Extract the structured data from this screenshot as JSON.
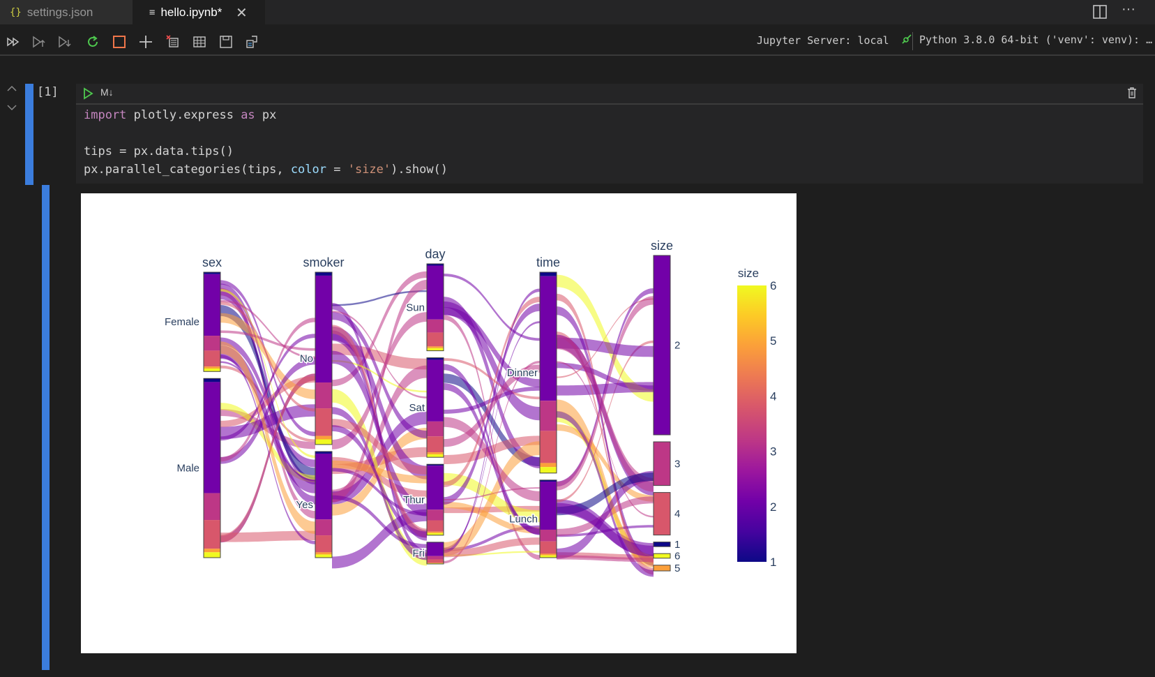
{
  "tabs": [
    {
      "icon": "{}",
      "label": "settings.json"
    },
    {
      "icon": "≡",
      "label": "hello.ipynb*"
    }
  ],
  "toolbar": {
    "server": "Jupyter Server: local",
    "kernel": "Python 3.8.0 64-bit ('venv': venv): …"
  },
  "cell": {
    "exec_count": "[1]",
    "type_label": "M↓",
    "code": {
      "l1_kw1": "import",
      "l1_mod": " plotly.express ",
      "l1_kw2": "as",
      "l1_alias": " px",
      "l3": "tips = px.data.tips()",
      "l4_a": "px.parallel_categories(tips, ",
      "l4_attr": "color",
      "l4_b": " = ",
      "l4_str": "'size'",
      "l4_c": ").show()"
    }
  },
  "chart_data": {
    "type": "parallel_categories",
    "dimensions": [
      {
        "name": "sex",
        "categories": [
          "Female",
          "Male"
        ],
        "counts": [
          87,
          157
        ]
      },
      {
        "name": "smoker",
        "categories": [
          "No",
          "Yes"
        ],
        "counts": [
          151,
          93
        ]
      },
      {
        "name": "day",
        "categories": [
          "Sun",
          "Sat",
          "Thur",
          "Fri"
        ],
        "counts": [
          76,
          87,
          62,
          19
        ]
      },
      {
        "name": "time",
        "categories": [
          "Dinner",
          "Lunch"
        ],
        "counts": [
          176,
          68
        ]
      },
      {
        "name": "size",
        "categories": [
          "2",
          "3",
          "4",
          "1",
          "6",
          "5"
        ],
        "counts": [
          156,
          38,
          37,
          4,
          4,
          5
        ]
      }
    ],
    "colorbar": {
      "title": "size",
      "ticks": [
        "1",
        "2",
        "3",
        "4",
        "5",
        "6"
      ],
      "range": [
        1,
        6
      ]
    },
    "colorscale": [
      "#0d0887",
      "#46039f",
      "#7201a8",
      "#9c179e",
      "#bd3786",
      "#d8576b",
      "#ed7953",
      "#fb9f3a",
      "#fdca26",
      "#f0f921"
    ]
  }
}
